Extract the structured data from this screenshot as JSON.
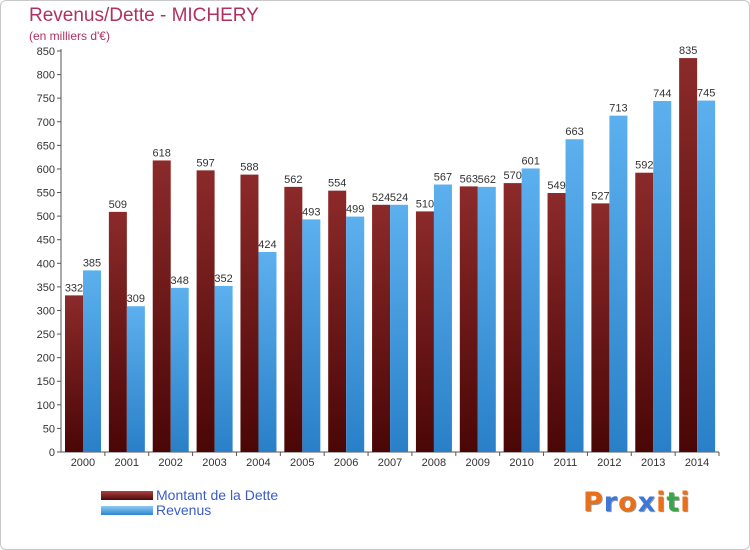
{
  "chart_data": {
    "type": "bar",
    "title": "Revenus/Dette - MICHERY",
    "subtitle": "(en milliers d'€)",
    "categories": [
      "2000",
      "2001",
      "2002",
      "2003",
      "2004",
      "2005",
      "2006",
      "2007",
      "2008",
      "2009",
      "2010",
      "2011",
      "2012",
      "2013",
      "2014"
    ],
    "series": [
      {
        "name": "Montant de la Dette",
        "color": "#7a1e1e",
        "values": [
          332,
          509,
          618,
          597,
          588,
          562,
          554,
          524,
          510,
          563,
          570,
          549,
          527,
          592,
          835
        ]
      },
      {
        "name": "Revenus",
        "color": "#4fa3e3",
        "values": [
          385,
          309,
          348,
          352,
          424,
          493,
          499,
          524,
          567,
          562,
          601,
          663,
          713,
          744,
          745
        ]
      }
    ],
    "ylim": [
      0,
      850
    ],
    "ytick_step": 50,
    "yticks": [
      "0",
      "50",
      "100",
      "150",
      "200",
      "250",
      "300",
      "350",
      "400",
      "450",
      "500",
      "550",
      "600",
      "650",
      "700",
      "750",
      "800",
      "850"
    ],
    "grid": false,
    "legend_position": "bottom-left"
  },
  "logo": {
    "letters": [
      {
        "char": "P",
        "color": "#e8701a"
      },
      {
        "char": "r",
        "color": "#3b78d8"
      },
      {
        "char": "o",
        "color": "#e8701a"
      },
      {
        "char": "x",
        "color": "#3b78d8"
      },
      {
        "char": "i",
        "color": "#e8701a"
      },
      {
        "char": "t",
        "color": "#3aa64a"
      },
      {
        "char": "i",
        "color": "#e8701a"
      }
    ]
  }
}
